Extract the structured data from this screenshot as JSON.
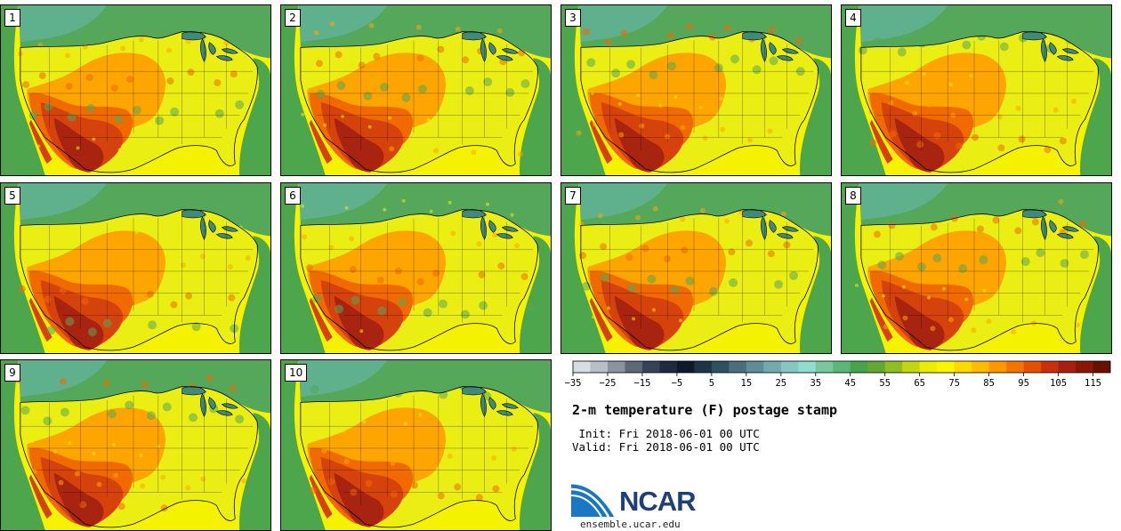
{
  "members": [
    {
      "label": "1"
    },
    {
      "label": "2"
    },
    {
      "label": "3"
    },
    {
      "label": "4"
    },
    {
      "label": "5"
    },
    {
      "label": "6"
    },
    {
      "label": "7"
    },
    {
      "label": "8"
    },
    {
      "label": "9"
    },
    {
      "label": "10"
    }
  ],
  "colorbar": {
    "colors": [
      "#d7dde3",
      "#b7bec7",
      "#8a93a0",
      "#5d6879",
      "#34425a",
      "#1c2a42",
      "#0c1a2e",
      "#1e3548",
      "#2f4f63",
      "#4a6d7f",
      "#5f8c96",
      "#74a9ad",
      "#86c7c3",
      "#8fdcd0",
      "#79c69f",
      "#5ab778",
      "#49a24c",
      "#62a833",
      "#8ebf1e",
      "#c3d70e",
      "#e9ed04",
      "#fbf600",
      "#ffd800",
      "#ffbb00",
      "#ff9800",
      "#f57400",
      "#e35000",
      "#c9300c",
      "#a81f0f",
      "#8a1609",
      "#6a1003"
    ],
    "tick_labels": [
      "−35",
      "−25",
      "−15",
      "−5",
      "5",
      "15",
      "25",
      "35",
      "45",
      "55",
      "65",
      "75",
      "85",
      "95",
      "105",
      "115"
    ]
  },
  "title": "2-m temperature (F) postage stamp",
  "init_text": " Init: Fri 2018-06-01 00 UTC",
  "valid_text": "Valid: Fri 2018-06-01 00 UTC",
  "logo": {
    "name": "NCAR",
    "url": "ensemble.ucar.edu"
  },
  "palette": {
    "ocean_green": "#4ea64c",
    "canada_green": "#55a85a",
    "teal_cold": "#5fb08c",
    "gulf_yellow": "#f5f200",
    "land_yellow": "#eaee12",
    "warm_orange": "#ffa500",
    "hot_orange": "#f06a00",
    "very_hot": "#d6420c",
    "extreme": "#a82410",
    "lakes": "#3f8a7a"
  }
}
